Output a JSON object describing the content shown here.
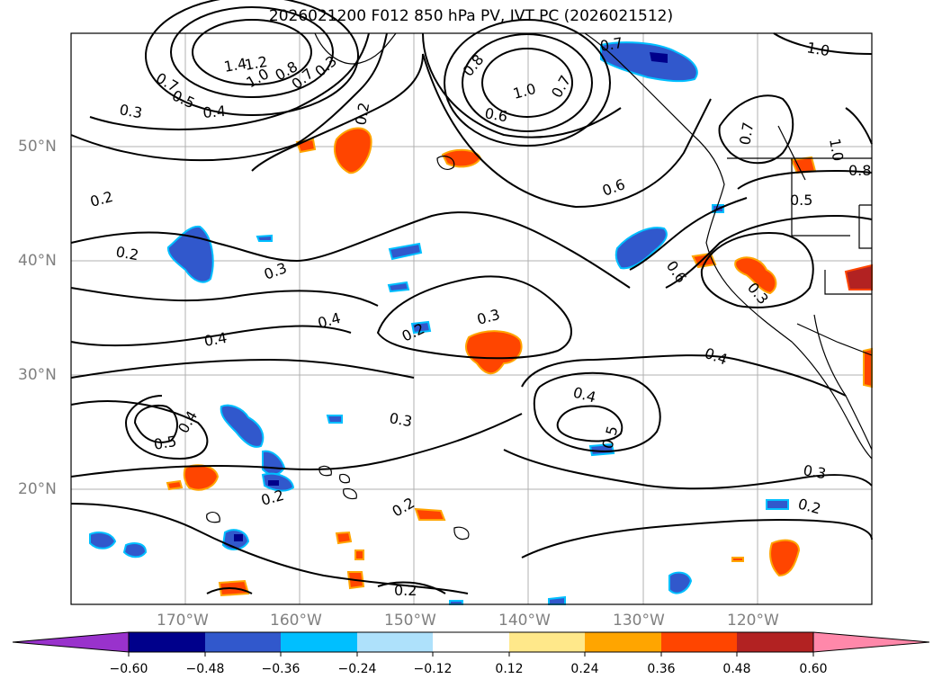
{
  "title": "2026021200 F012 850 hPa PV, IVT PC (2026021512)",
  "map": {
    "lat_labels": [
      {
        "text": "50°N",
        "value": 50
      },
      {
        "text": "40°N",
        "value": 40
      },
      {
        "text": "30°N",
        "value": 30
      },
      {
        "text": "20°N",
        "value": 20
      }
    ],
    "lon_labels": [
      {
        "text": "170°W",
        "value": -170
      },
      {
        "text": "160°W",
        "value": -160
      },
      {
        "text": "150°W",
        "value": -150
      },
      {
        "text": "140°W",
        "value": -140
      },
      {
        "text": "130°W",
        "value": -130
      },
      {
        "text": "120°W",
        "value": -120
      }
    ],
    "extent": {
      "lon_min": -180,
      "lon_max": -110,
      "lat_min": 10,
      "lat_max": 60
    },
    "contour_labels": [
      "1.4",
      "1.2",
      "1.0",
      "0.8",
      "0.7",
      "0.7",
      "0.5",
      "0.4",
      "0.3",
      "0.3",
      "0.2",
      "0.2",
      "0.8",
      "1.0",
      "0.7",
      "0.6",
      "0.7",
      "1.0",
      "0.7",
      "1.0",
      "0.8",
      "0.5",
      "0.6",
      "0.6",
      "0.3",
      "0.4",
      "0.4",
      "0.2",
      "0.3",
      "0.4",
      "0.3",
      "0.4",
      "0.5",
      "0.3",
      "0.4",
      "0.5",
      "0.2",
      "0.2",
      "0.2",
      "0.3",
      "0.2",
      "0.2"
    ]
  },
  "colorbar": {
    "ticks": [
      "−0.60",
      "−0.48",
      "−0.36",
      "−0.24",
      "−0.12",
      "0.12",
      "0.24",
      "0.36",
      "0.48",
      "0.60"
    ],
    "colors": [
      "#9932cc",
      "#00008b",
      "#3158cc",
      "#00bfff",
      "#aee1fb",
      "#ffffff",
      "#ffe88a",
      "#ffa500",
      "#ff4500",
      "#b22222",
      "#ff88aa"
    ]
  }
}
